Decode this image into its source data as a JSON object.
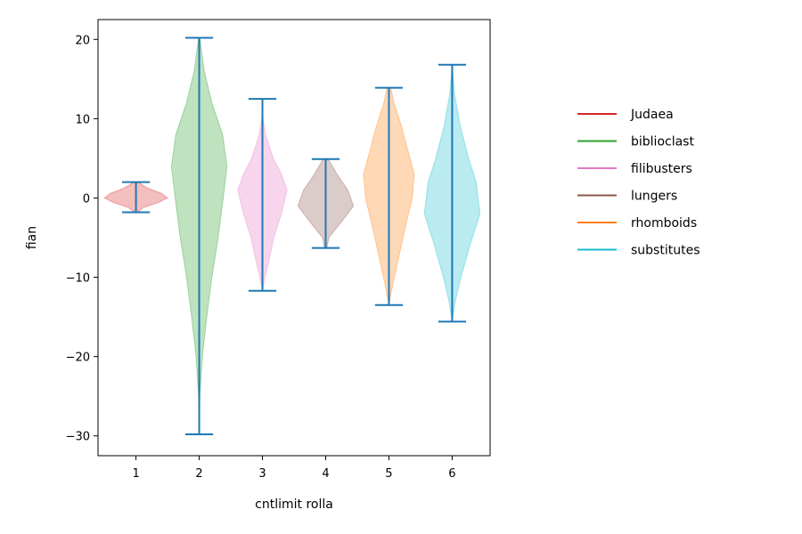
{
  "chart_data": {
    "type": "violin",
    "xlabel": "cntlimit rolla",
    "ylabel": "fian",
    "xlim": [
      0.4,
      6.6
    ],
    "ylim": [
      -32.5,
      22.5
    ],
    "y_ticks": [
      20,
      10,
      0,
      -10,
      -20,
      -30
    ],
    "y_tick_labels": [
      "20",
      "10",
      "0",
      "−10",
      "−20",
      "−30"
    ],
    "x_ticks": [
      1,
      2,
      3,
      4,
      5,
      6
    ],
    "x_tick_labels": [
      "1",
      "2",
      "3",
      "4",
      "5",
      "6"
    ],
    "legend_placement": "right",
    "whisker_color": "#1f77b4",
    "series": [
      {
        "name": "Judaea",
        "position": 1,
        "min": -1.8,
        "max": 2.0,
        "color": "#d62728",
        "profile": [
          [
            -1.8,
            0.02
          ],
          [
            -1.2,
            0.12
          ],
          [
            -0.6,
            0.35
          ],
          [
            0.0,
            0.5
          ],
          [
            0.6,
            0.4
          ],
          [
            1.2,
            0.2
          ],
          [
            2.0,
            0.03
          ]
        ]
      },
      {
        "name": "biblioclast",
        "position": 2,
        "min": -29.8,
        "max": 20.2,
        "color": "#2ca02c",
        "profile": [
          [
            -29.8,
            0.0
          ],
          [
            -25.0,
            0.01
          ],
          [
            -20.0,
            0.05
          ],
          [
            -15.0,
            0.12
          ],
          [
            -10.0,
            0.2
          ],
          [
            -5.0,
            0.3
          ],
          [
            0.0,
            0.38
          ],
          [
            4.0,
            0.44
          ],
          [
            8.0,
            0.37
          ],
          [
            12.0,
            0.2
          ],
          [
            16.0,
            0.08
          ],
          [
            20.2,
            0.01
          ]
        ]
      },
      {
        "name": "filibusters",
        "position": 3,
        "min": -11.7,
        "max": 12.5,
        "color": "#e377c2",
        "profile": [
          [
            -11.7,
            0.0
          ],
          [
            -10.0,
            0.04
          ],
          [
            -8.0,
            0.1
          ],
          [
            -5.0,
            0.18
          ],
          [
            -2.0,
            0.3
          ],
          [
            1.0,
            0.39
          ],
          [
            3.0,
            0.3
          ],
          [
            5.0,
            0.17
          ],
          [
            8.0,
            0.05
          ],
          [
            10.0,
            0.01
          ],
          [
            12.5,
            0.0
          ]
        ]
      },
      {
        "name": "lungers",
        "position": 4,
        "min": -6.3,
        "max": 4.9,
        "color": "#8c564b",
        "profile": [
          [
            -6.3,
            0.02
          ],
          [
            -5.0,
            0.05
          ],
          [
            -3.0,
            0.25
          ],
          [
            -1.0,
            0.44
          ],
          [
            1.0,
            0.35
          ],
          [
            3.0,
            0.18
          ],
          [
            4.9,
            0.04
          ]
        ]
      },
      {
        "name": "rhomboids",
        "position": 5,
        "min": -13.5,
        "max": 13.9,
        "color": "#ff7f0e",
        "profile": [
          [
            -13.5,
            0.0
          ],
          [
            -11.0,
            0.06
          ],
          [
            -8.0,
            0.14
          ],
          [
            -4.0,
            0.25
          ],
          [
            0.0,
            0.37
          ],
          [
            3.0,
            0.4
          ],
          [
            6.0,
            0.3
          ],
          [
            9.0,
            0.2
          ],
          [
            12.0,
            0.08
          ],
          [
            13.9,
            0.03
          ]
        ]
      },
      {
        "name": "substitutes",
        "position": 6,
        "min": -15.6,
        "max": 16.8,
        "color": "#17becf",
        "profile": [
          [
            -15.6,
            0.0
          ],
          [
            -13.0,
            0.05
          ],
          [
            -10.0,
            0.14
          ],
          [
            -6.0,
            0.28
          ],
          [
            -2.0,
            0.44
          ],
          [
            2.0,
            0.38
          ],
          [
            5.0,
            0.26
          ],
          [
            9.0,
            0.13
          ],
          [
            13.0,
            0.04
          ],
          [
            16.8,
            0.0
          ]
        ]
      }
    ]
  }
}
